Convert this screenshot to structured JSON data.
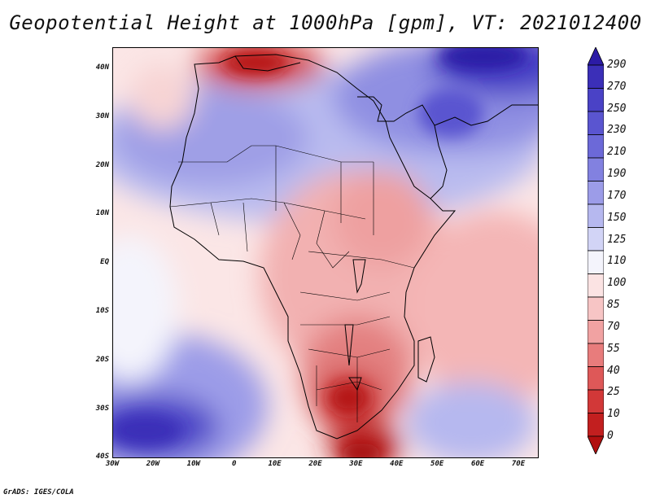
{
  "title": "Geopotential Height at 1000hPa [gpm], VT: 2021012400",
  "footer": "GrADS: IGES/COLA",
  "map": {
    "lon_range": [
      -30,
      75
    ],
    "lat_range": [
      -40,
      45
    ],
    "lon_ticks": [
      "30W",
      "20W",
      "10W",
      "0",
      "10E",
      "20E",
      "30E",
      "40E",
      "50E",
      "60E",
      "70E"
    ],
    "lat_ticks": [
      "40N",
      "30N",
      "20N",
      "10N",
      "EQ",
      "10S",
      "20S",
      "30S",
      "40S"
    ]
  },
  "colorbar": {
    "labels": [
      "290",
      "270",
      "250",
      "230",
      "210",
      "190",
      "170",
      "150",
      "125",
      "110",
      "100",
      "85",
      "70",
      "55",
      "40",
      "25",
      "10",
      "0"
    ],
    "colors": [
      "#2c1ba6",
      "#3b2fb8",
      "#4a42c6",
      "#5a55d0",
      "#6c69d8",
      "#8281e0",
      "#9c9ce8",
      "#b6b8ef",
      "#d2d4f6",
      "#f4f4fc",
      "#fbe3e3",
      "#f7c5c5",
      "#f1a2a2",
      "#e87c7c",
      "#de5858",
      "#d23838",
      "#c21f1f",
      "#b10f0f"
    ]
  }
}
